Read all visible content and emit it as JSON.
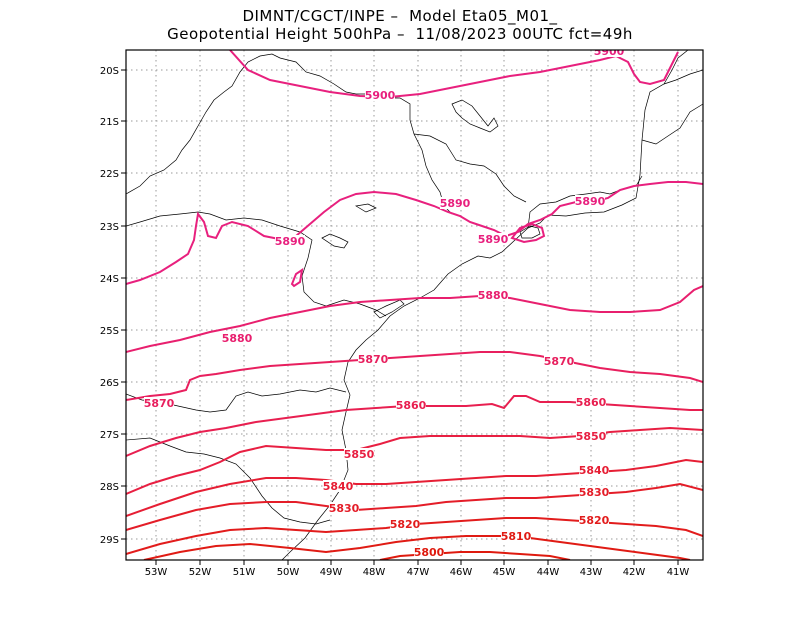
{
  "title_line1": "DIMNT/CGCT/INPE –  Model Eta05_M01_",
  "title_line2": "Geopotential Height 500hPa –  11/08/2023 00UTC fct=49h",
  "lat_ticks": [
    "20S",
    "21S",
    "22S",
    "23S",
    "24S",
    "25S",
    "26S",
    "27S",
    "28S",
    "29S"
  ],
  "lon_ticks": [
    "53W",
    "52W",
    "51W",
    "50W",
    "49W",
    "48W",
    "47W",
    "46W",
    "45W",
    "44W",
    "43W",
    "42W",
    "41W"
  ],
  "contour_labels": [
    {
      "text": "5900",
      "color": "#e8207e"
    },
    {
      "text": "5900",
      "color": "#e8207e"
    },
    {
      "text": "5890",
      "color": "#e8207e"
    },
    {
      "text": "5890",
      "color": "#e8207e"
    },
    {
      "text": "5890",
      "color": "#e8207e"
    },
    {
      "text": "5890",
      "color": "#e8207e"
    },
    {
      "text": "5880",
      "color": "#e81f6e"
    },
    {
      "text": "5880",
      "color": "#e81f6e"
    },
    {
      "text": "5870",
      "color": "#e81f5e"
    },
    {
      "text": "5870",
      "color": "#e81f5e"
    },
    {
      "text": "5870",
      "color": "#e81f5e"
    },
    {
      "text": "5860",
      "color": "#e81f50"
    },
    {
      "text": "5860",
      "color": "#e81f50"
    },
    {
      "text": "5850",
      "color": "#e81f42"
    },
    {
      "text": "5850",
      "color": "#e81f42"
    },
    {
      "text": "5840",
      "color": "#e61e34"
    },
    {
      "text": "5840",
      "color": "#e61e34"
    },
    {
      "text": "5830",
      "color": "#e41d28"
    },
    {
      "text": "5830",
      "color": "#e41d28"
    },
    {
      "text": "5820",
      "color": "#e21c1c"
    },
    {
      "text": "5820",
      "color": "#e21c1c"
    },
    {
      "text": "5810",
      "color": "#e01b14"
    },
    {
      "text": "5800",
      "color": "#de1a0e"
    }
  ]
}
